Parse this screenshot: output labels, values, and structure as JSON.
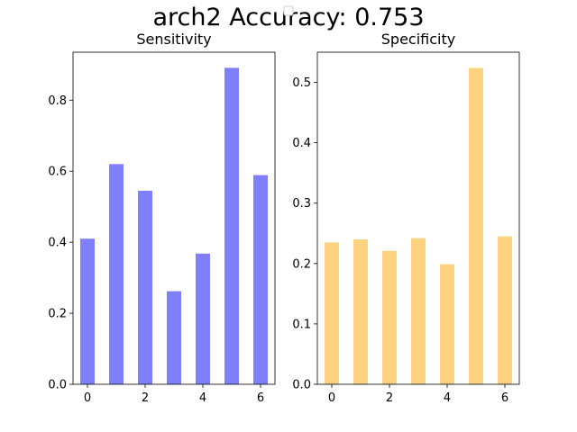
{
  "figure": {
    "title": "arch2 Accuracy: 0.753"
  },
  "chart_data": [
    {
      "type": "bar",
      "title": "Sensitivity",
      "xlabel": "",
      "ylabel": "",
      "categories": [
        0,
        1,
        2,
        3,
        4,
        5,
        6
      ],
      "values": [
        0.41,
        0.62,
        0.545,
        0.262,
        0.368,
        0.891,
        0.589
      ],
      "color": "#8080ff",
      "xticks": [
        "0",
        "2",
        "4",
        "6"
      ],
      "yticks": [
        "0.0",
        "0.2",
        "0.4",
        "0.6",
        "0.8"
      ],
      "ylim": [
        0,
        0.935
      ],
      "xlim": [
        -0.5,
        6.5
      ],
      "grid": false
    },
    {
      "type": "bar",
      "title": "Specificity",
      "xlabel": "",
      "ylabel": "",
      "categories": [
        0,
        1,
        2,
        3,
        4,
        5,
        6
      ],
      "values": [
        0.235,
        0.24,
        0.221,
        0.242,
        0.199,
        0.524,
        0.245
      ],
      "color": "#ffd280",
      "xticks": [
        "0",
        "2",
        "4",
        "6"
      ],
      "yticks": [
        "0.0",
        "0.1",
        "0.2",
        "0.3",
        "0.4",
        "0.5"
      ],
      "ylim": [
        0,
        0.55
      ],
      "xlim": [
        -0.5,
        6.5
      ],
      "grid": false
    }
  ]
}
